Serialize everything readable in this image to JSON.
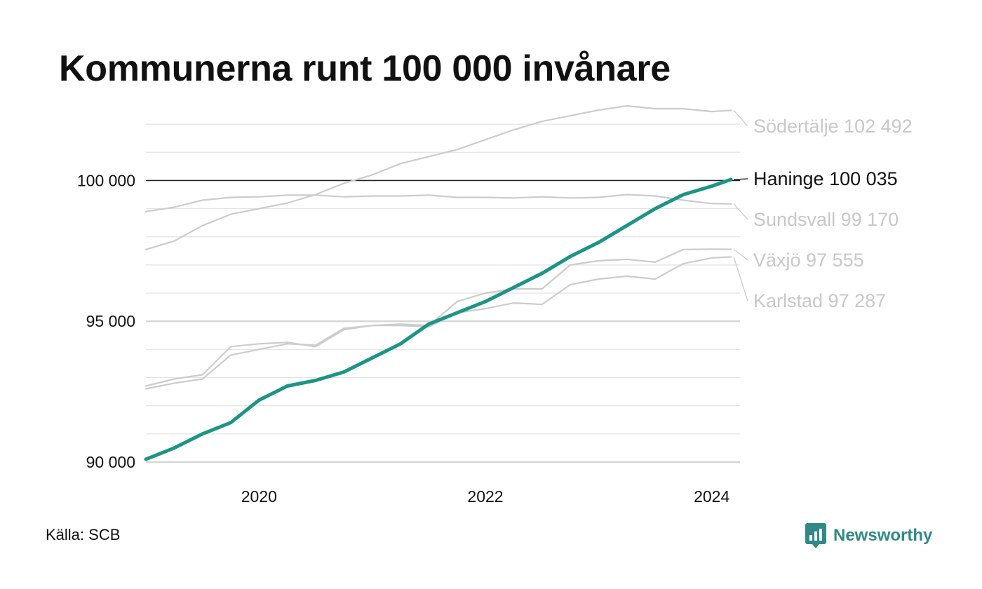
{
  "title": "Kommunerna runt 100 000 invånare",
  "source": "Källa: SCB",
  "brand": {
    "name": "Newsworthy",
    "icon": "newsworthy-logo-icon",
    "color": "#2e8a86"
  },
  "chart_data": {
    "type": "line",
    "title": "Kommunerna runt 100 000 invånare",
    "xlabel": "",
    "ylabel": "",
    "xlim": [
      2019.0,
      2024.25
    ],
    "ylim": [
      89600,
      102800
    ],
    "x_ticks": [
      {
        "value": 2020,
        "label": "2020"
      },
      {
        "value": 2022,
        "label": "2022"
      },
      {
        "value": 2024,
        "label": "2024"
      }
    ],
    "y_ticks": [
      {
        "value": 90000,
        "label": "90 000"
      },
      {
        "value": 95000,
        "label": "95 000"
      },
      {
        "value": 100000,
        "label": "100 000"
      }
    ],
    "y_grid_step": 1000,
    "reference_line": 100000,
    "grid": true,
    "series": [
      {
        "name": "Södertälje",
        "label": "Södertälje 102 492",
        "color": "#cccccc",
        "highlight": false,
        "points": [
          [
            2019.0,
            97550
          ],
          [
            2019.25,
            97850
          ],
          [
            2019.5,
            98400
          ],
          [
            2019.75,
            98800
          ],
          [
            2020.0,
            99000
          ],
          [
            2020.25,
            99200
          ],
          [
            2020.5,
            99500
          ],
          [
            2020.75,
            99900
          ],
          [
            2021.0,
            100200
          ],
          [
            2021.25,
            100600
          ],
          [
            2021.5,
            100850
          ],
          [
            2021.75,
            101100
          ],
          [
            2022.0,
            101450
          ],
          [
            2022.25,
            101800
          ],
          [
            2022.5,
            102100
          ],
          [
            2022.75,
            102300
          ],
          [
            2023.0,
            102500
          ],
          [
            2023.25,
            102650
          ],
          [
            2023.5,
            102550
          ],
          [
            2023.75,
            102550
          ],
          [
            2024.0,
            102450
          ],
          [
            2024.17,
            102492
          ]
        ]
      },
      {
        "name": "Sundsvall",
        "label": "Sundsvall  99 170",
        "color": "#cccccc",
        "highlight": false,
        "points": [
          [
            2019.0,
            98900
          ],
          [
            2019.25,
            99050
          ],
          [
            2019.5,
            99300
          ],
          [
            2019.75,
            99400
          ],
          [
            2020.0,
            99420
          ],
          [
            2020.25,
            99480
          ],
          [
            2020.5,
            99480
          ],
          [
            2020.75,
            99420
          ],
          [
            2021.0,
            99450
          ],
          [
            2021.25,
            99450
          ],
          [
            2021.5,
            99480
          ],
          [
            2021.75,
            99400
          ],
          [
            2022.0,
            99400
          ],
          [
            2022.25,
            99380
          ],
          [
            2022.5,
            99420
          ],
          [
            2022.75,
            99380
          ],
          [
            2023.0,
            99400
          ],
          [
            2023.25,
            99500
          ],
          [
            2023.5,
            99450
          ],
          [
            2023.75,
            99300
          ],
          [
            2024.0,
            99180
          ],
          [
            2024.17,
            99170
          ]
        ]
      },
      {
        "name": "Växjö",
        "label": "Växjö  97 555",
        "color": "#cccccc",
        "highlight": false,
        "points": [
          [
            2019.0,
            92700
          ],
          [
            2019.25,
            92950
          ],
          [
            2019.5,
            93100
          ],
          [
            2019.75,
            94100
          ],
          [
            2020.0,
            94200
          ],
          [
            2020.25,
            94250
          ],
          [
            2020.5,
            94100
          ],
          [
            2020.75,
            94700
          ],
          [
            2021.0,
            94850
          ],
          [
            2021.25,
            94900
          ],
          [
            2021.5,
            94850
          ],
          [
            2021.75,
            95700
          ],
          [
            2022.0,
            96000
          ],
          [
            2022.25,
            96150
          ],
          [
            2022.5,
            96150
          ],
          [
            2022.75,
            97000
          ],
          [
            2023.0,
            97150
          ],
          [
            2023.25,
            97200
          ],
          [
            2023.5,
            97100
          ],
          [
            2023.75,
            97550
          ],
          [
            2024.0,
            97560
          ],
          [
            2024.17,
            97555
          ]
        ]
      },
      {
        "name": "Karlstad",
        "label": "Karlstad  97 287",
        "color": "#cccccc",
        "highlight": false,
        "points": [
          [
            2019.0,
            92600
          ],
          [
            2019.25,
            92800
          ],
          [
            2019.5,
            92950
          ],
          [
            2019.75,
            93800
          ],
          [
            2020.0,
            94000
          ],
          [
            2020.25,
            94200
          ],
          [
            2020.5,
            94150
          ],
          [
            2020.75,
            94750
          ],
          [
            2021.0,
            94850
          ],
          [
            2021.25,
            94850
          ],
          [
            2021.5,
            94800
          ],
          [
            2021.75,
            95300
          ],
          [
            2022.0,
            95450
          ],
          [
            2022.25,
            95650
          ],
          [
            2022.5,
            95600
          ],
          [
            2022.75,
            96300
          ],
          [
            2023.0,
            96500
          ],
          [
            2023.25,
            96600
          ],
          [
            2023.5,
            96500
          ],
          [
            2023.75,
            97050
          ],
          [
            2024.0,
            97250
          ],
          [
            2024.17,
            97287
          ]
        ]
      },
      {
        "name": "Haninge",
        "label": "Haninge 100 035",
        "color": "#1b9585",
        "highlight": true,
        "points": [
          [
            2019.0,
            90100
          ],
          [
            2019.25,
            90500
          ],
          [
            2019.5,
            91000
          ],
          [
            2019.75,
            91400
          ],
          [
            2020.0,
            92200
          ],
          [
            2020.25,
            92700
          ],
          [
            2020.5,
            92900
          ],
          [
            2020.75,
            93200
          ],
          [
            2021.0,
            93700
          ],
          [
            2021.25,
            94200
          ],
          [
            2021.5,
            94900
          ],
          [
            2021.75,
            95300
          ],
          [
            2022.0,
            95700
          ],
          [
            2022.25,
            96200
          ],
          [
            2022.5,
            96700
          ],
          [
            2022.75,
            97300
          ],
          [
            2023.0,
            97800
          ],
          [
            2023.25,
            98400
          ],
          [
            2023.5,
            99000
          ],
          [
            2023.75,
            99500
          ],
          [
            2024.0,
            99800
          ],
          [
            2024.17,
            100035
          ]
        ]
      }
    ]
  }
}
